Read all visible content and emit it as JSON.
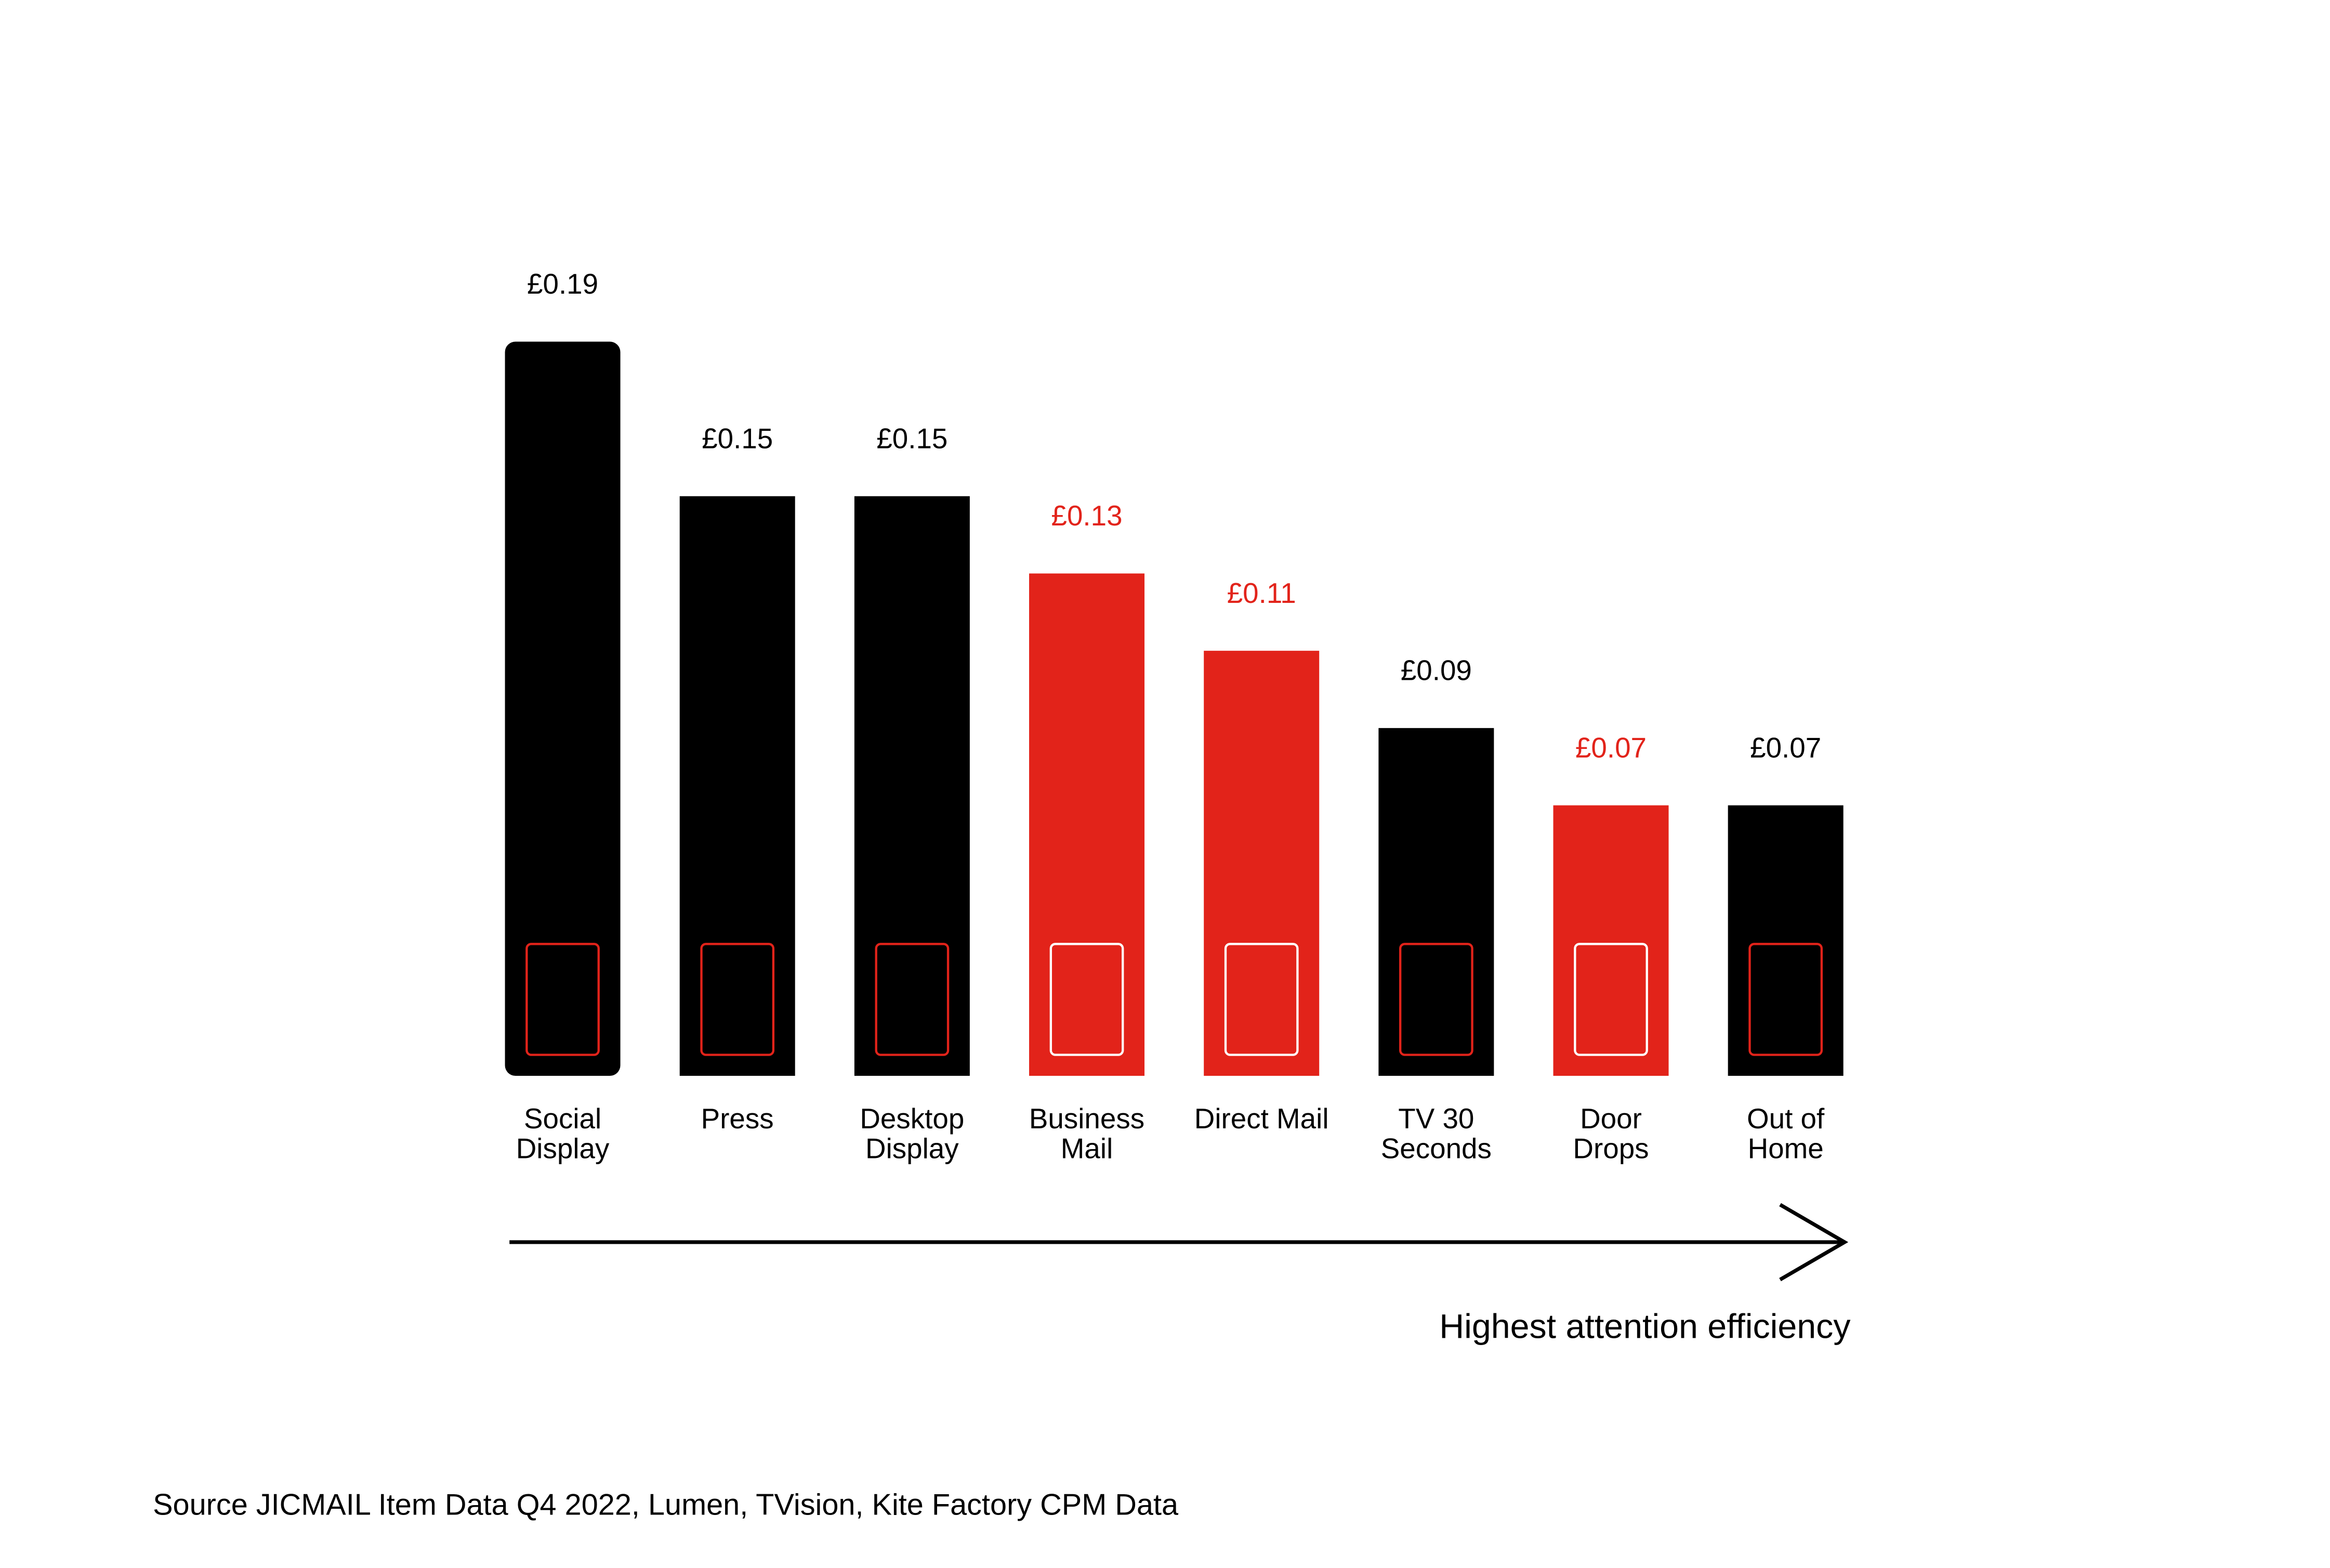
{
  "chart_data": {
    "type": "bar",
    "categories": [
      "Social Display",
      "Press",
      "Desktop Display",
      "Business Mail",
      "Direct Mail",
      "TV 30 Seconds",
      "Door Drops",
      "Out of Home"
    ],
    "values": [
      0.19,
      0.15,
      0.15,
      0.13,
      0.11,
      0.09,
      0.07,
      0.07
    ],
    "value_labels": [
      "£0.19",
      "£0.15",
      "£0.15",
      "£0.13",
      "£0.11",
      "£0.09",
      "£0.07",
      "£0.07"
    ],
    "colors": [
      "#000000",
      "#000000",
      "#000000",
      "#e2231a",
      "#e2231a",
      "#000000",
      "#e2231a",
      "#000000"
    ],
    "annotation": "Highest attention efficiency",
    "source": "Source JICMAIL Item Data Q4 2022, Lumen, TVision, Kite Factory CPM Data"
  }
}
